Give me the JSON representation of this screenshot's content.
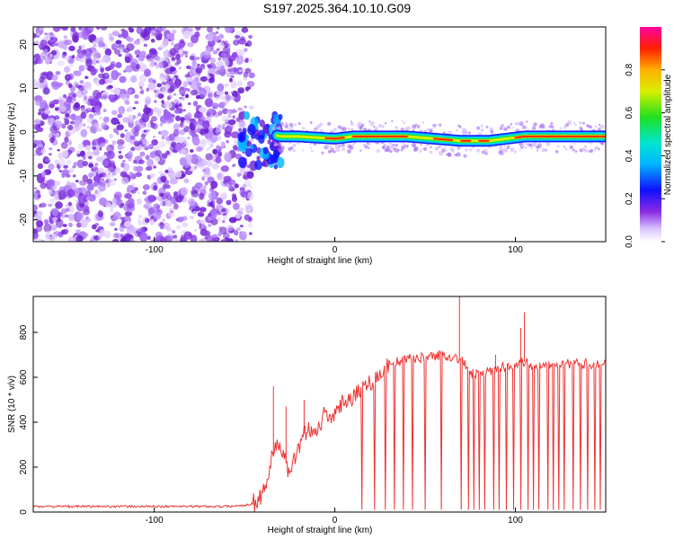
{
  "chart_data": [
    {
      "type": "heatmap",
      "title": "S197.2025.364.10.10.G09",
      "xlabel": "Height of straight line (km)",
      "ylabel": "Frequency (Hz)",
      "xlim": [
        -167,
        150
      ],
      "ylim": [
        -25,
        24
      ],
      "xticks": [
        -100,
        0,
        100
      ],
      "yticks": [
        -20,
        -10,
        0,
        10,
        20
      ],
      "colorbar": {
        "label": "Normalized spectral amplitude",
        "range": [
          0.0,
          1.0
        ],
        "ticks": [
          "0.0",
          "0.2",
          "0.4",
          "0.6",
          "0.8"
        ]
      },
      "ridge": {
        "x_range": [
          -40,
          150
        ],
        "freq_points": [
          [
            -40,
            0
          ],
          [
            -30,
            -1
          ],
          [
            -20,
            -1
          ],
          [
            0,
            -1.5
          ],
          [
            10,
            -1
          ],
          [
            40,
            -1
          ],
          [
            55,
            -1.5
          ],
          [
            70,
            -2
          ],
          [
            85,
            -2
          ],
          [
            95,
            -1.5
          ],
          [
            105,
            -1
          ],
          [
            150,
            -1
          ]
        ],
        "peak_amplitude_regions": [
          [
            -5,
            5
          ],
          [
            10,
            40
          ],
          [
            55,
            65
          ],
          [
            70,
            75
          ],
          [
            80,
            85
          ],
          [
            100,
            150
          ]
        ]
      },
      "noise_region_x": [
        -167,
        -52
      ]
    },
    {
      "type": "line",
      "title": "",
      "xlabel": "Height of straight line (km)",
      "ylabel": "SNR (10 * v/v)",
      "xlim": [
        -167,
        150
      ],
      "ylim": [
        0,
        960
      ],
      "xticks": [
        -100,
        0,
        100
      ],
      "yticks": [
        0,
        200,
        400,
        600,
        800
      ],
      "series": [
        {
          "name": "SNR",
          "color": "#ee3333",
          "x": [
            -167,
            -150,
            -120,
            -100,
            -80,
            -60,
            -50,
            -45,
            -40,
            -36,
            -32,
            -28,
            -25,
            -20,
            -15,
            -10,
            -5,
            0,
            5,
            10,
            15,
            20,
            25,
            30,
            40,
            50,
            60,
            65,
            70,
            75,
            80,
            90,
            100,
            105,
            110,
            120,
            130,
            140,
            150
          ],
          "y": [
            25,
            25,
            25,
            25,
            25,
            25,
            30,
            40,
            80,
            200,
            320,
            250,
            150,
            300,
            380,
            360,
            450,
            420,
            500,
            520,
            560,
            580,
            620,
            660,
            680,
            690,
            700,
            690,
            680,
            620,
            610,
            640,
            660,
            670,
            650,
            660,
            660,
            660,
            660
          ]
        }
      ],
      "spikes_up": [
        [
          -34,
          560
        ],
        [
          -27,
          470
        ],
        [
          -17,
          500
        ],
        [
          69,
          960
        ],
        [
          103,
          820
        ],
        [
          89,
          700
        ],
        [
          105,
          890
        ]
      ],
      "dropouts_x": [
        15,
        22,
        28,
        33,
        38,
        43,
        50,
        59,
        70,
        74,
        77,
        80,
        83,
        88,
        91,
        95,
        99,
        103,
        107,
        110,
        113,
        118,
        121,
        124,
        127,
        132,
        136,
        140,
        144,
        147
      ]
    }
  ]
}
